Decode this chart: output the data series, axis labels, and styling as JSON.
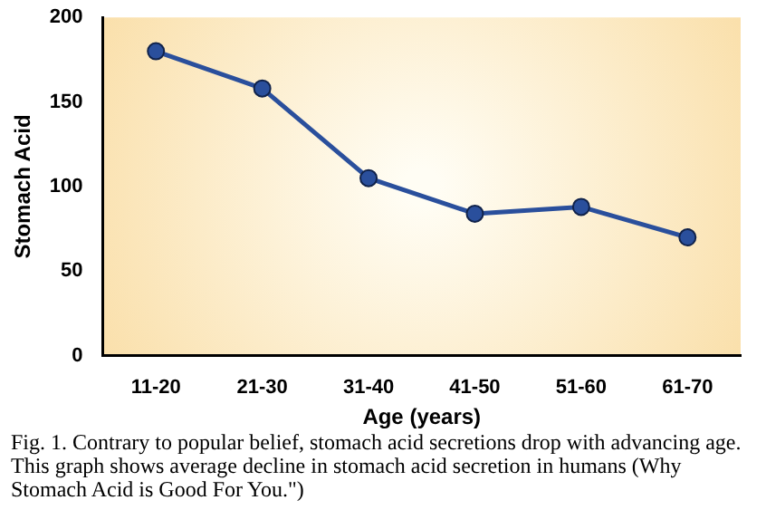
{
  "chart_data": {
    "type": "line",
    "xlabel": "Age (years)",
    "ylabel": "Stomach Acid",
    "categories": [
      "11-20",
      "21-30",
      "31-40",
      "41-50",
      "51-60",
      "61-70"
    ],
    "series": [
      {
        "color": "#2a4f9c",
        "values": [
          180,
          158,
          105,
          84,
          88,
          70
        ]
      }
    ],
    "ylim": [
      0,
      200
    ],
    "yticks": [
      0,
      50,
      100,
      150,
      200
    ],
    "grid": false,
    "legend": false,
    "marker": "circle",
    "line_style": "solid",
    "annotations": [
      "Fig. 1. Contrary to popular belief, stomach acid secretions drop with advancing age. This graph shows average decline in stomach acid secretion in humans (Why Stomach Acid is Good For You.\")"
    ]
  }
}
